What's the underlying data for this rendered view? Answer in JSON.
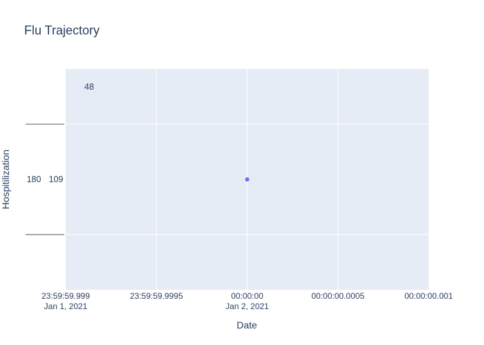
{
  "chart_data": {
    "type": "scatter",
    "title": "Flu Trajectory",
    "xlabel": "Date",
    "ylabel": "Hospitilization",
    "grid": true,
    "legend": false,
    "x_ticks": [
      {
        "label": "23:59:59.999",
        "sublabel": "Jan 1, 2021",
        "value": -0.001
      },
      {
        "label": "23:59:59.9995",
        "sublabel": "",
        "value": -0.0005
      },
      {
        "label": "00:00:00",
        "sublabel": "Jan 2, 2021",
        "value": 0
      },
      {
        "label": "00:00:00.0005",
        "sublabel": "",
        "value": 0.0005
      },
      {
        "label": "00:00:00.001",
        "sublabel": "",
        "value": 0.001
      }
    ],
    "xlim": [
      -0.001,
      0.001
    ],
    "ylim": [
      -1,
      1
    ],
    "series": [
      {
        "x": [
          "2021-01-02 00:00:00"
        ],
        "y": [
          0
        ],
        "color": "#636efa"
      }
    ],
    "annotations": [
      "48",
      "180",
      "109"
    ]
  }
}
